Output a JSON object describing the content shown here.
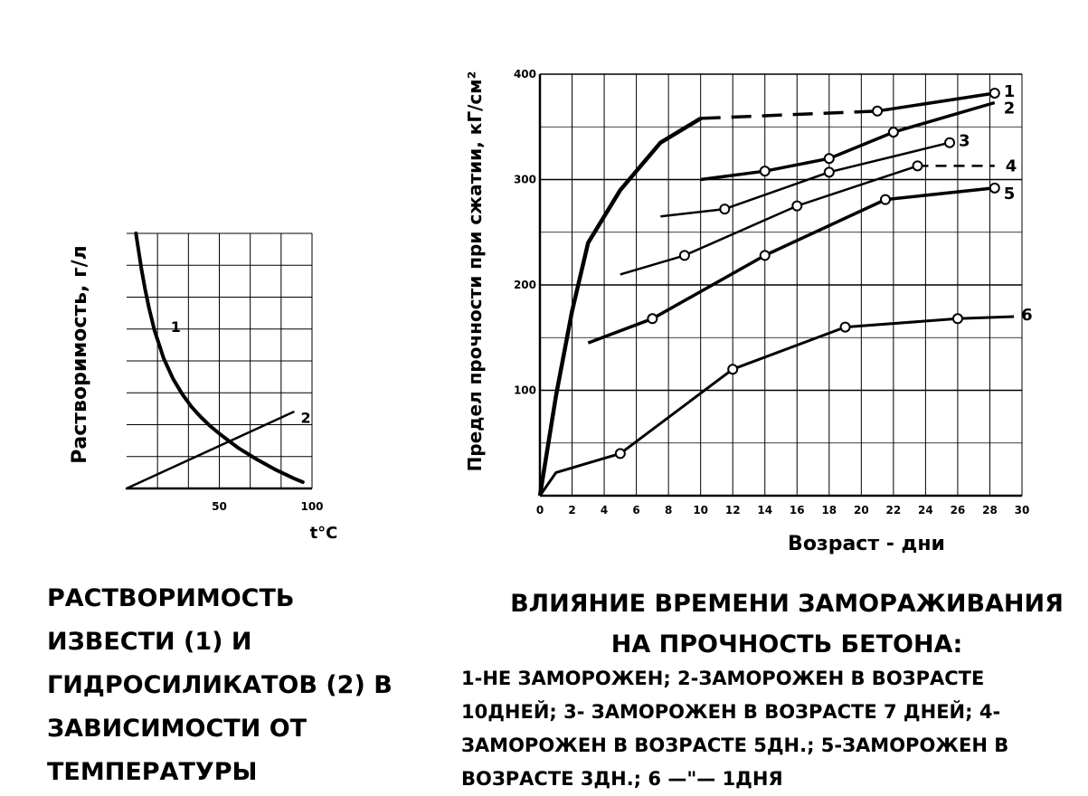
{
  "chart_data": [
    {
      "type": "line",
      "title": "",
      "xlabel": "t°C",
      "ylabel": "Растворимость, г/л",
      "xlim": [
        0,
        100
      ],
      "ylim": [
        0,
        10
      ],
      "xticks": [
        50,
        100
      ],
      "xtick_labels": [
        "50",
        "100"
      ],
      "grid": true,
      "series": [
        {
          "name": "1",
          "x": [
            5,
            8,
            10,
            12,
            15,
            20,
            25,
            30,
            35,
            40,
            45,
            50,
            60,
            70,
            80,
            90,
            95
          ],
          "y": [
            10.0,
            8.6,
            7.8,
            7.1,
            6.2,
            5.1,
            4.3,
            3.7,
            3.2,
            2.8,
            2.45,
            2.15,
            1.6,
            1.15,
            0.75,
            0.4,
            0.25
          ]
        },
        {
          "name": "2",
          "x": [
            0,
            90
          ],
          "y": [
            0,
            3.0
          ]
        }
      ],
      "caption": "Растворимость извести (1) и гидросиликатов (2) в зависимости от температуры"
    },
    {
      "type": "line",
      "title": "",
      "xlabel": "Возраст - дни",
      "ylabel": "Предел прочности при сжатии, кГ/см²",
      "xlim": [
        0,
        30
      ],
      "ylim": [
        0,
        400
      ],
      "xticks": [
        0,
        2,
        4,
        6,
        8,
        10,
        12,
        14,
        16,
        18,
        20,
        22,
        24,
        26,
        28,
        30
      ],
      "xtick_labels": [
        "0",
        "2",
        "4",
        "6",
        "8",
        "10",
        "12",
        "14",
        "16",
        "18",
        "20",
        "22",
        "24",
        "26",
        "28",
        "30"
      ],
      "yticks": [
        100,
        200,
        300,
        400
      ],
      "ytick_labels": [
        "100",
        "200",
        "300",
        "400"
      ],
      "grid": true,
      "series": [
        {
          "name": "1",
          "x": [
            0,
            1,
            2,
            3,
            5,
            7.5,
            10,
            21,
            28.3
          ],
          "y": [
            0,
            95,
            175,
            240,
            290,
            335,
            358,
            365,
            382
          ],
          "markers": [
            21,
            28.3
          ]
        },
        {
          "name": "2",
          "x": [
            10,
            14,
            18,
            22,
            28.3
          ],
          "y": [
            300,
            308,
            320,
            345,
            373
          ],
          "markers": [
            14,
            18,
            22
          ]
        },
        {
          "name": "3",
          "x": [
            7.5,
            11.5,
            18,
            25.5
          ],
          "y": [
            265,
            272,
            307,
            335
          ],
          "markers": [
            11.5,
            18,
            25.5
          ]
        },
        {
          "name": "4",
          "x": [
            5,
            9,
            16,
            23.5,
            28.3
          ],
          "y": [
            210,
            228,
            275,
            313,
            313
          ],
          "markers": [
            9,
            16,
            23.5
          ]
        },
        {
          "name": "5",
          "x": [
            3,
            7,
            14,
            21.5,
            28.3
          ],
          "y": [
            145,
            168,
            228,
            281,
            292
          ],
          "markers": [
            7,
            14,
            21.5,
            28.3
          ]
        },
        {
          "name": "6",
          "x": [
            0,
            1,
            5,
            12,
            19,
            26,
            29.5
          ],
          "y": [
            0,
            22,
            40,
            120,
            160,
            168,
            170
          ],
          "markers": [
            5,
            12,
            19,
            26
          ]
        }
      ],
      "caption_title": "Влияние времени замораживания на прочность бетона:",
      "caption_legend": "1-не заморожен; 2-заморожен в возрасте 10дней; 3- заморожен в возрасте 7 дней; 4-заморожен в возрасте 5дн.; 5-заморожен в возрасте 3дн.; 6 —\"— 1дня"
    }
  ]
}
